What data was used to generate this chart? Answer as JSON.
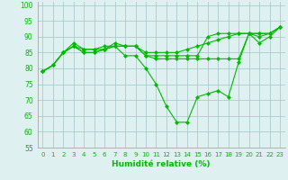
{
  "title": "",
  "xlabel": "Humidité relative (%)",
  "ylabel": "",
  "bg_color": "#dff0f0",
  "grid_color": "#aacccc",
  "line_color": "#00bb00",
  "xlim": [
    -0.5,
    23.5
  ],
  "ylim": [
    55,
    101
  ],
  "yticks": [
    55,
    60,
    65,
    70,
    75,
    80,
    85,
    90,
    95,
    100
  ],
  "xticks": [
    0,
    1,
    2,
    3,
    4,
    5,
    6,
    7,
    8,
    9,
    10,
    11,
    12,
    13,
    14,
    15,
    16,
    17,
    18,
    19,
    20,
    21,
    22,
    23
  ],
  "series": [
    [
      79,
      81,
      85,
      88,
      86,
      86,
      87,
      87,
      84,
      84,
      80,
      75,
      68,
      63,
      63,
      71,
      72,
      73,
      71,
      82,
      91,
      88,
      90,
      93
    ],
    [
      79,
      81,
      85,
      87,
      85,
      85,
      86,
      88,
      87,
      87,
      84,
      83,
      83,
      83,
      83,
      83,
      83,
      83,
      83,
      83,
      91,
      91,
      91,
      93
    ],
    [
      79,
      81,
      85,
      87,
      86,
      86,
      86,
      87,
      87,
      87,
      85,
      85,
      85,
      85,
      86,
      87,
      88,
      89,
      90,
      91,
      91,
      90,
      91,
      93
    ],
    [
      79,
      81,
      85,
      87,
      85,
      85,
      86,
      87,
      87,
      87,
      84,
      84,
      84,
      84,
      84,
      84,
      90,
      91,
      91,
      91,
      91,
      91,
      91,
      93
    ]
  ],
  "xlabel_fontsize": 6.5,
  "xlabel_fontweight": "bold",
  "xtick_fontsize": 5.0,
  "ytick_fontsize": 5.5,
  "marker": "D",
  "markersize": 2.0,
  "linewidth": 0.8
}
